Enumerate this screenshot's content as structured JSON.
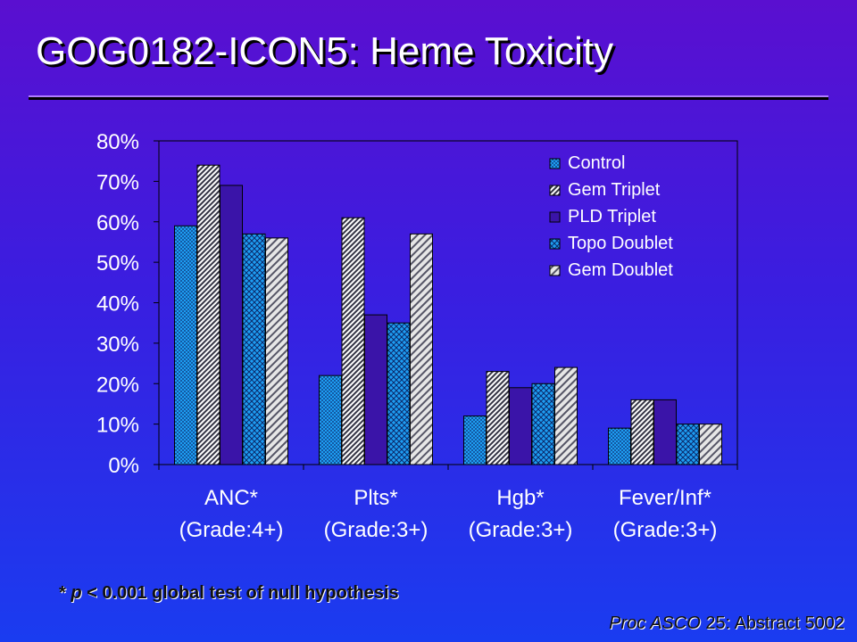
{
  "slide": {
    "title": "GOG0182-ICON5:  Heme Toxicity",
    "footnote_star": "* ",
    "footnote_p": "p",
    "footnote_rest": " < 0.001 global test of null hypothesis",
    "citation_journal": "Proc ASCO",
    "citation_rest": " 25: Abstract 5002"
  },
  "colors": {
    "control": "#1e9df2",
    "gem_triplet": "#c8c8c8",
    "pld_triplet": "#3a14a8",
    "topo_doublet": "#1e9df2",
    "gem_doublet": "#c8c8c8"
  },
  "chart_data": {
    "type": "bar",
    "title": "",
    "xlabel": "",
    "ylabel": "",
    "ylim": [
      0,
      80
    ],
    "yticks": [
      "0%",
      "10%",
      "20%",
      "30%",
      "40%",
      "50%",
      "60%",
      "70%",
      "80%"
    ],
    "ytick_values": [
      0,
      10,
      20,
      30,
      40,
      50,
      60,
      70,
      80
    ],
    "categories": [
      [
        "ANC*",
        "(Grade:4+)"
      ],
      [
        "Plts*",
        "(Grade:3+)"
      ],
      [
        "Hgb*",
        "(Grade:3+)"
      ],
      [
        "Fever/Inf*",
        "(Grade:3+)"
      ]
    ],
    "legend_position": "top-right",
    "series": [
      {
        "name": "Control",
        "values": [
          59,
          22,
          12,
          9
        ],
        "pattern": "dots"
      },
      {
        "name": "Gem Triplet",
        "values": [
          74,
          61,
          23,
          16
        ],
        "pattern": "diag-dense"
      },
      {
        "name": "PLD Triplet",
        "values": [
          69,
          37,
          19,
          16
        ],
        "pattern": "solid"
      },
      {
        "name": "Topo Doublet",
        "values": [
          57,
          35,
          20,
          10
        ],
        "pattern": "cross"
      },
      {
        "name": "Gem Doublet",
        "values": [
          56,
          57,
          24,
          10
        ],
        "pattern": "diag-wide"
      }
    ],
    "grid": false
  }
}
